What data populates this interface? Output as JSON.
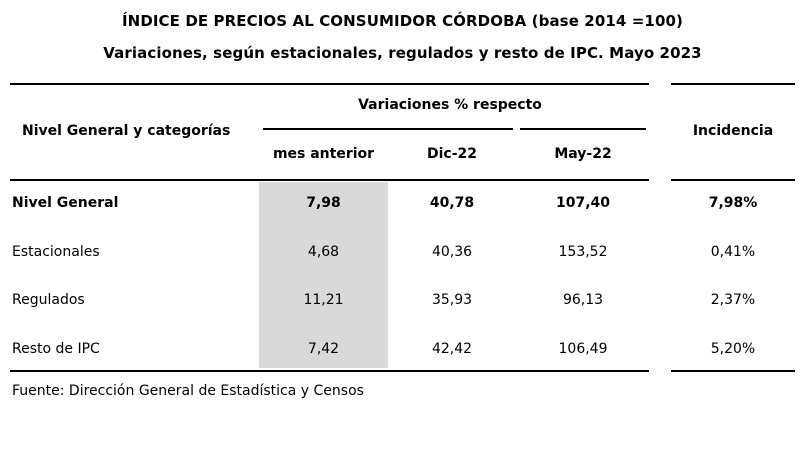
{
  "title": "ÍNDICE DE PRECIOS AL CONSUMIDOR CÓRDOBA (base 2014 =100)",
  "subtitle": "Variaciones, según estacionales, regulados y resto de IPC.  Mayo 2023",
  "table": {
    "header": {
      "row_label": "Nivel General y categorías",
      "group_label": "Variaciones % respecto",
      "columns": [
        "mes anterior",
        "Dic-22",
        "May-22"
      ],
      "incidence": "Incidencia"
    },
    "rows": [
      {
        "label": "Nivel General",
        "mes_anterior": "7,98",
        "dic22": "40,78",
        "may22": "107,40",
        "incidencia": "7,98%",
        "bold": true
      },
      {
        "label": "Estacionales",
        "mes_anterior": "4,68",
        "dic22": "40,36",
        "may22": "153,52",
        "incidencia": "0,41%",
        "bold": false
      },
      {
        "label": "Regulados",
        "mes_anterior": "11,21",
        "dic22": "35,93",
        "may22": "96,13",
        "incidencia": "2,37%",
        "bold": false
      },
      {
        "label": "Resto de IPC",
        "mes_anterior": "7,42",
        "dic22": "42,42",
        "may22": "106,49",
        "incidencia": "5,20%",
        "bold": false
      }
    ]
  },
  "source": "Fuente: Dirección General de Estadística y Censos"
}
